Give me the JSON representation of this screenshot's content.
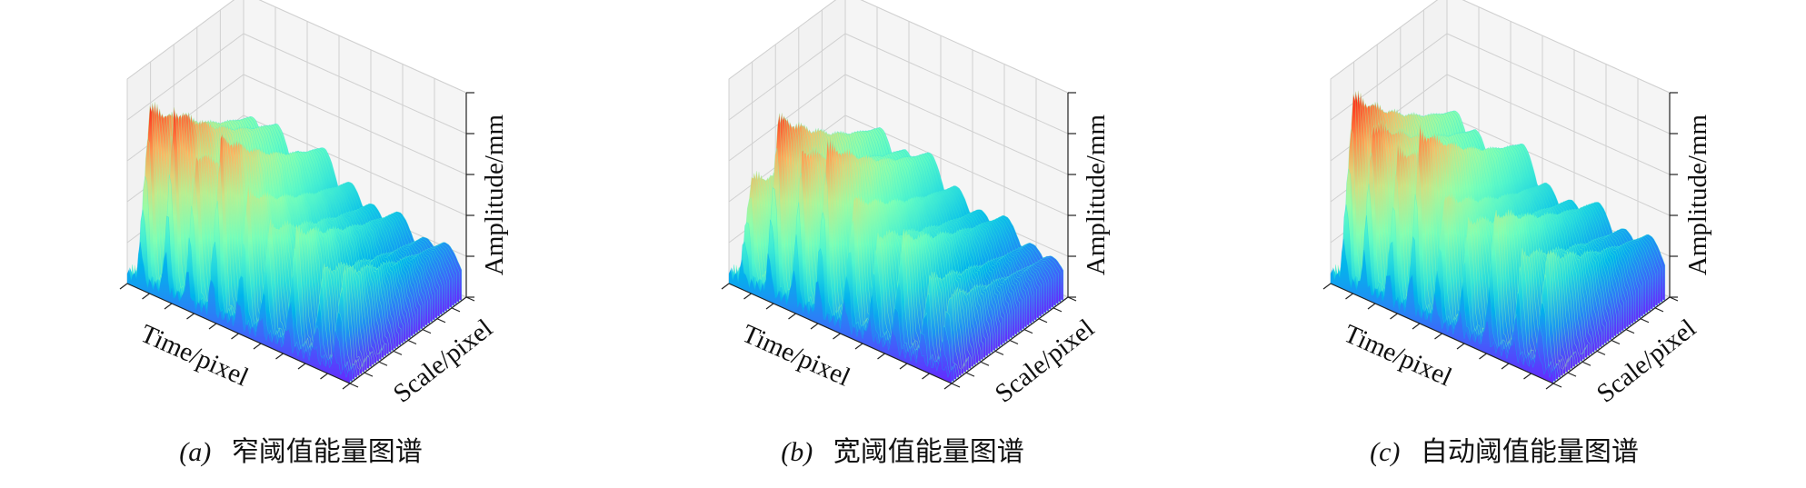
{
  "chart_data": [
    {
      "type": "surface3d",
      "caption_tag": "(a)",
      "caption_text": "窄阈值能量图谱",
      "xlabel": "Time/pixel",
      "ylabel": "Scale/pixel",
      "zlabel": "Amplitude/mm",
      "colormap": "rainbow",
      "grid": true,
      "peaks": [
        {
          "t": 0.06,
          "amp": 0.92
        },
        {
          "t": 0.17,
          "amp": 0.96
        },
        {
          "t": 0.27,
          "amp": 0.78
        },
        {
          "t": 0.38,
          "amp": 0.93
        },
        {
          "t": 0.5,
          "amp": 0.7
        },
        {
          "t": 0.6,
          "amp": 0.58
        },
        {
          "t": 0.72,
          "amp": 0.62
        },
        {
          "t": 0.84,
          "amp": 0.48
        },
        {
          "t": 0.93,
          "amp": 0.52
        }
      ]
    },
    {
      "type": "surface3d",
      "caption_tag": "(b)",
      "caption_text": "宽阈值能量图谱",
      "xlabel": "Time/pixel",
      "ylabel": "Scale/pixel",
      "zlabel": "Amplitude/mm",
      "colormap": "rainbow",
      "grid": true,
      "peaks": [
        {
          "t": 0.06,
          "amp": 0.55
        },
        {
          "t": 0.18,
          "amp": 0.93
        },
        {
          "t": 0.29,
          "amp": 0.82
        },
        {
          "t": 0.4,
          "amp": 0.9
        },
        {
          "t": 0.52,
          "amp": 0.68
        },
        {
          "t": 0.63,
          "amp": 0.55
        },
        {
          "t": 0.74,
          "amp": 0.6
        },
        {
          "t": 0.86,
          "amp": 0.44
        },
        {
          "t": 0.95,
          "amp": 0.4
        }
      ]
    },
    {
      "type": "surface3d",
      "caption_tag": "(c)",
      "caption_text": "自动阈值能量图谱",
      "xlabel": "Time/pixel",
      "ylabel": "Scale/pixel",
      "zlabel": "Amplitude/mm",
      "colormap": "rainbow",
      "grid": true,
      "peaks": [
        {
          "t": 0.06,
          "amp": 0.98
        },
        {
          "t": 0.15,
          "amp": 0.88
        },
        {
          "t": 0.26,
          "amp": 0.8
        },
        {
          "t": 0.36,
          "amp": 0.95
        },
        {
          "t": 0.47,
          "amp": 0.66
        },
        {
          "t": 0.58,
          "amp": 0.6
        },
        {
          "t": 0.7,
          "amp": 0.7
        },
        {
          "t": 0.82,
          "amp": 0.55
        },
        {
          "t": 0.93,
          "amp": 0.6
        }
      ]
    }
  ]
}
